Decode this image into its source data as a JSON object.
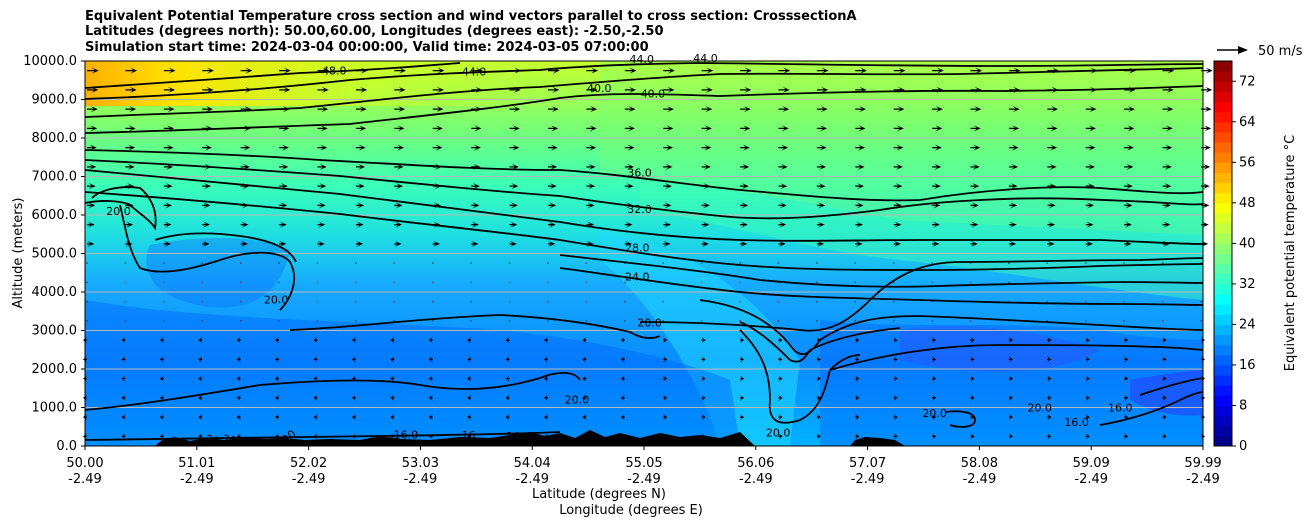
{
  "chart_data": {
    "type": "contourf",
    "title_lines": [
      "Equivalent Potential Temperature cross section and wind vectors parallel to cross section: CrosssectionA",
      "Latitudes (degrees north): 50.00,60.00, Longitudes (degrees east): -2.50,-2.50",
      "Simulation start time: 2024-03-04 00:00:00, Valid time: 2024-03-05 07:00:00"
    ],
    "xlabel": "Latitude (degrees N)",
    "xlabel2": "Longitude (degrees E)",
    "ylabel": "Altitude (meters)",
    "x_ticks": [
      {
        "lat": "50.00",
        "lon": "-2.49"
      },
      {
        "lat": "51.01",
        "lon": "-2.49"
      },
      {
        "lat": "52.02",
        "lon": "-2.49"
      },
      {
        "lat": "53.03",
        "lon": "-2.49"
      },
      {
        "lat": "54.04",
        "lon": "-2.49"
      },
      {
        "lat": "55.05",
        "lon": "-2.49"
      },
      {
        "lat": "56.06",
        "lon": "-2.49"
      },
      {
        "lat": "57.07",
        "lon": "-2.49"
      },
      {
        "lat": "58.08",
        "lon": "-2.49"
      },
      {
        "lat": "59.09",
        "lon": "-2.49"
      },
      {
        "lat": "59.99",
        "lon": "-2.49"
      }
    ],
    "y_ticks": [
      "0.0",
      "1000.0",
      "2000.0",
      "3000.0",
      "4000.0",
      "5000.0",
      "6000.0",
      "7000.0",
      "8000.0",
      "9000.0",
      "10000.0"
    ],
    "ylim": [
      0,
      10000
    ],
    "colorbar": {
      "label": "Equivalent potential temperature $^\\circ$C",
      "label_text": "Equivalent potential temperature °C",
      "ticks": [
        "0",
        "8",
        "16",
        "24",
        "32",
        "40",
        "48",
        "56",
        "64",
        "72"
      ],
      "range": [
        0,
        76
      ]
    },
    "quiver_key": {
      "label": "50 m/s"
    },
    "contour_labels": [
      {
        "text": "48.0",
        "x": 0.223,
        "y": 9.65
      },
      {
        "text": "44.0",
        "x": 0.348,
        "y": 9.62
      },
      {
        "text": "44.0",
        "x": 0.498,
        "y": 9.95
      },
      {
        "text": "44.0",
        "x": 0.555,
        "y": 9.97
      },
      {
        "text": "40.0",
        "x": 0.46,
        "y": 9.2
      },
      {
        "text": "40.0",
        "x": 0.508,
        "y": 9.05
      },
      {
        "text": "36.0",
        "x": 0.496,
        "y": 7.0
      },
      {
        "text": "32.0",
        "x": 0.496,
        "y": 6.05
      },
      {
        "text": "28.0",
        "x": 0.494,
        "y": 5.05
      },
      {
        "text": "24.0",
        "x": 0.494,
        "y": 4.3
      },
      {
        "text": "20.0",
        "x": 0.505,
        "y": 3.1
      },
      {
        "text": "20.0",
        "x": 0.03,
        "y": 6.0
      },
      {
        "text": "20.0",
        "x": 0.171,
        "y": 3.7
      },
      {
        "text": "20.0",
        "x": 0.44,
        "y": 1.1
      },
      {
        "text": "20.0",
        "x": 0.62,
        "y": 0.25
      },
      {
        "text": "20.0",
        "x": 0.76,
        "y": 0.75
      },
      {
        "text": "20.0",
        "x": 0.854,
        "y": 0.9
      },
      {
        "text": "16.0",
        "x": 0.887,
        "y": 0.52
      },
      {
        "text": "16.0",
        "x": 0.926,
        "y": 0.9
      },
      {
        "text": "16.0",
        "x": 0.287,
        "y": 0.2
      },
      {
        "text": "16",
        "x": 0.343,
        "y": 0.18
      },
      {
        "text": "16",
        "x": 0.383,
        "y": 0.15
      }
    ],
    "truncated_labels": [
      "20",
      "20",
      "16.0",
      "16.0",
      "20"
    ]
  }
}
